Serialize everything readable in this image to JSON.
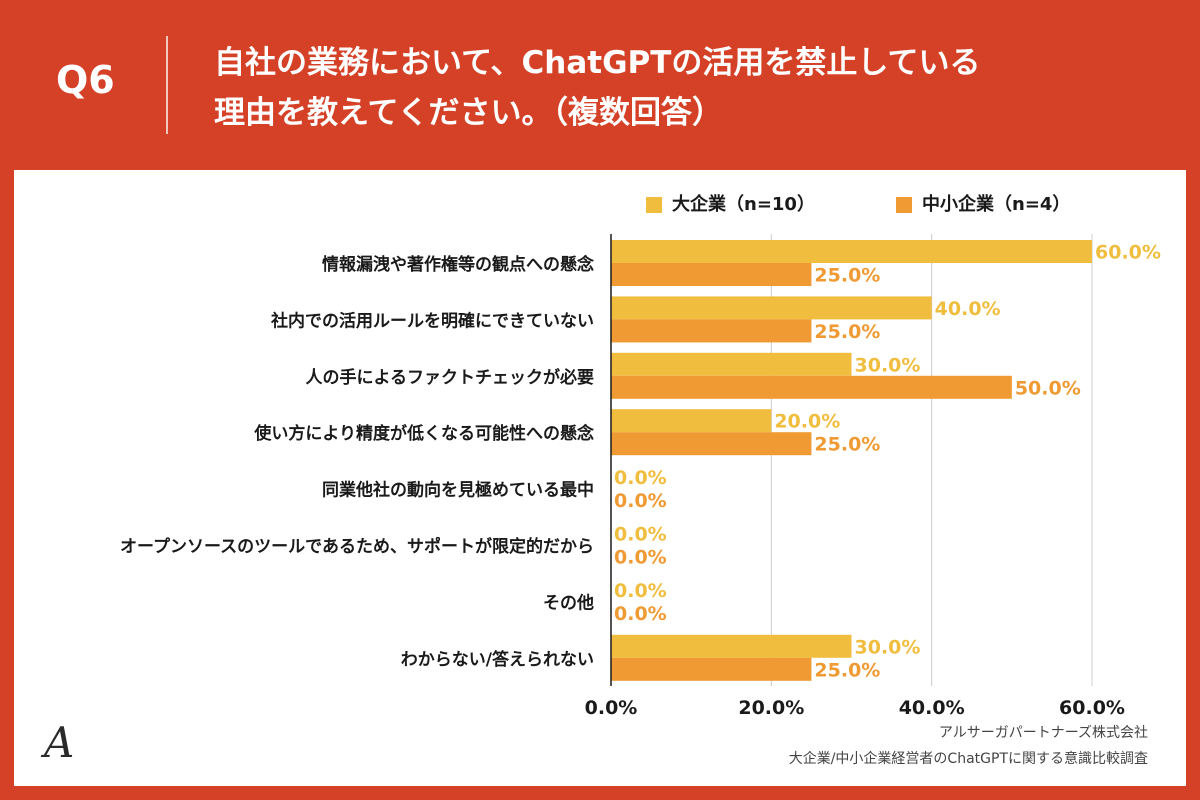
{
  "header": {
    "q_label": "Q6",
    "title_line1": "自社の業務において、ChatGPTの活用を禁止している",
    "title_line2": "理由を教えてください。（複数回答）"
  },
  "colors": {
    "background": "#d54127",
    "large": "#f0bd3e",
    "small": "#ef9a33",
    "grid": "#cccccc"
  },
  "chart_data": {
    "type": "bar",
    "orientation": "horizontal",
    "categories": [
      "情報漏洩や著作権等の観点への懸念",
      "社内での活用ルールを明確にできていない",
      "人の手によるファクトチェックが必要",
      "使い方により精度が低くなる可能性への懸念",
      "同業他社の動向を見極めている最中",
      "オープンソースのツールであるため、サポートが限定的だから",
      "その他",
      "わからない/答えられない"
    ],
    "series": [
      {
        "name": "大企業（n=10）",
        "values": [
          60.0,
          40.0,
          30.0,
          20.0,
          0.0,
          0.0,
          0.0,
          30.0
        ]
      },
      {
        "name": "中小企業（n=4）",
        "values": [
          25.0,
          25.0,
          50.0,
          25.0,
          0.0,
          0.0,
          0.0,
          25.0
        ]
      }
    ],
    "xlim": [
      0,
      60
    ],
    "xticks": [
      0,
      20,
      40,
      60
    ],
    "tick_labels": [
      "0.0%",
      "20.0%",
      "40.0%",
      "60.0%"
    ],
    "value_labels": [
      [
        "60.0%",
        "40.0%",
        "30.0%",
        "20.0%",
        "0.0%",
        "0.0%",
        "0.0%",
        "30.0%"
      ],
      [
        "25.0%",
        "25.0%",
        "50.0%",
        "25.0%",
        "0.0%",
        "0.0%",
        "0.0%",
        "25.0%"
      ]
    ],
    "grid": true,
    "legend": "top-right"
  },
  "footer": {
    "logo": "A",
    "company": "アルサーガパートナーズ株式会社",
    "survey": "大企業/中小企業経営者のChatGPTに関する意識比較調査"
  }
}
